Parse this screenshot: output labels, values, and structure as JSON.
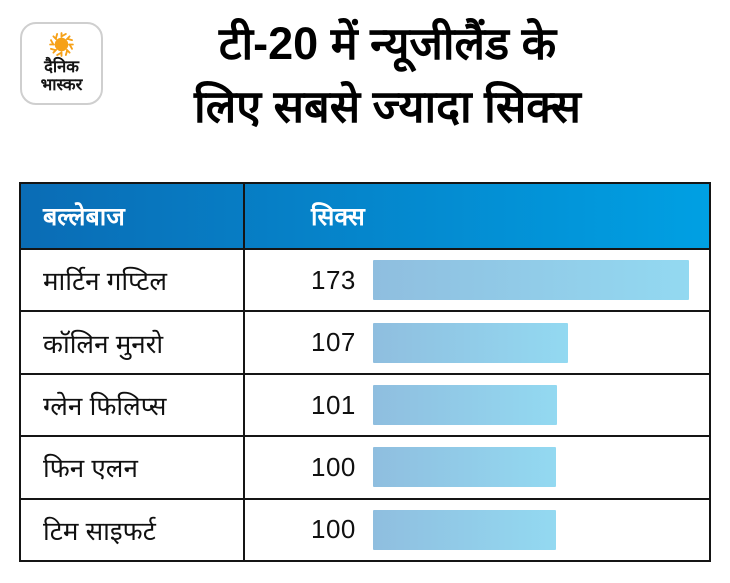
{
  "logo": {
    "name": "dainik-bhaskar",
    "line1": "दैनिक",
    "line2": "भास्कर",
    "sun_color": "#f6a118"
  },
  "title": {
    "line1": "टी-20 में न्यूजीलैंड के",
    "line2": "लिए सबसे ज्यादा सिक्स"
  },
  "table": {
    "columns": [
      "बल्लेबाज",
      "सिक्स"
    ],
    "rows": [
      {
        "batsman": "मार्टिन गप्टिल",
        "sixes": 173
      },
      {
        "batsman": "कॉलिन मुनरो",
        "sixes": 107
      },
      {
        "batsman": "ग्लेन फिलिप्स",
        "sixes": 101
      },
      {
        "batsman": "फिन एलन",
        "sixes": 100
      },
      {
        "batsman": "टिम साइफर्ट",
        "sixes": 100
      }
    ]
  },
  "colors": {
    "header_gradient": [
      "#0a6cb5",
      "#00a0e3"
    ],
    "bar_gradient": [
      "#8fbedf",
      "#93d9f1"
    ],
    "border": "#151515",
    "header_text": "#ffffff",
    "body_text": "#101010"
  },
  "chart_data": {
    "type": "bar",
    "orientation": "horizontal",
    "title": "टी-20 में न्यूजीलैंड के लिए सबसे ज्यादा सिक्स",
    "categories": [
      "मार्टिन गप्टिल",
      "कॉलिन मुनरो",
      "ग्लेन फिलिप्स",
      "फिन एलन",
      "टिम साइफर्ट"
    ],
    "values": [
      173,
      107,
      101,
      100,
      100
    ],
    "xlabel": "सिक्स",
    "ylabel": "बल्लेबाज",
    "xlim": [
      0,
      190
    ],
    "grid": false,
    "legend": false,
    "data_labels": true
  }
}
